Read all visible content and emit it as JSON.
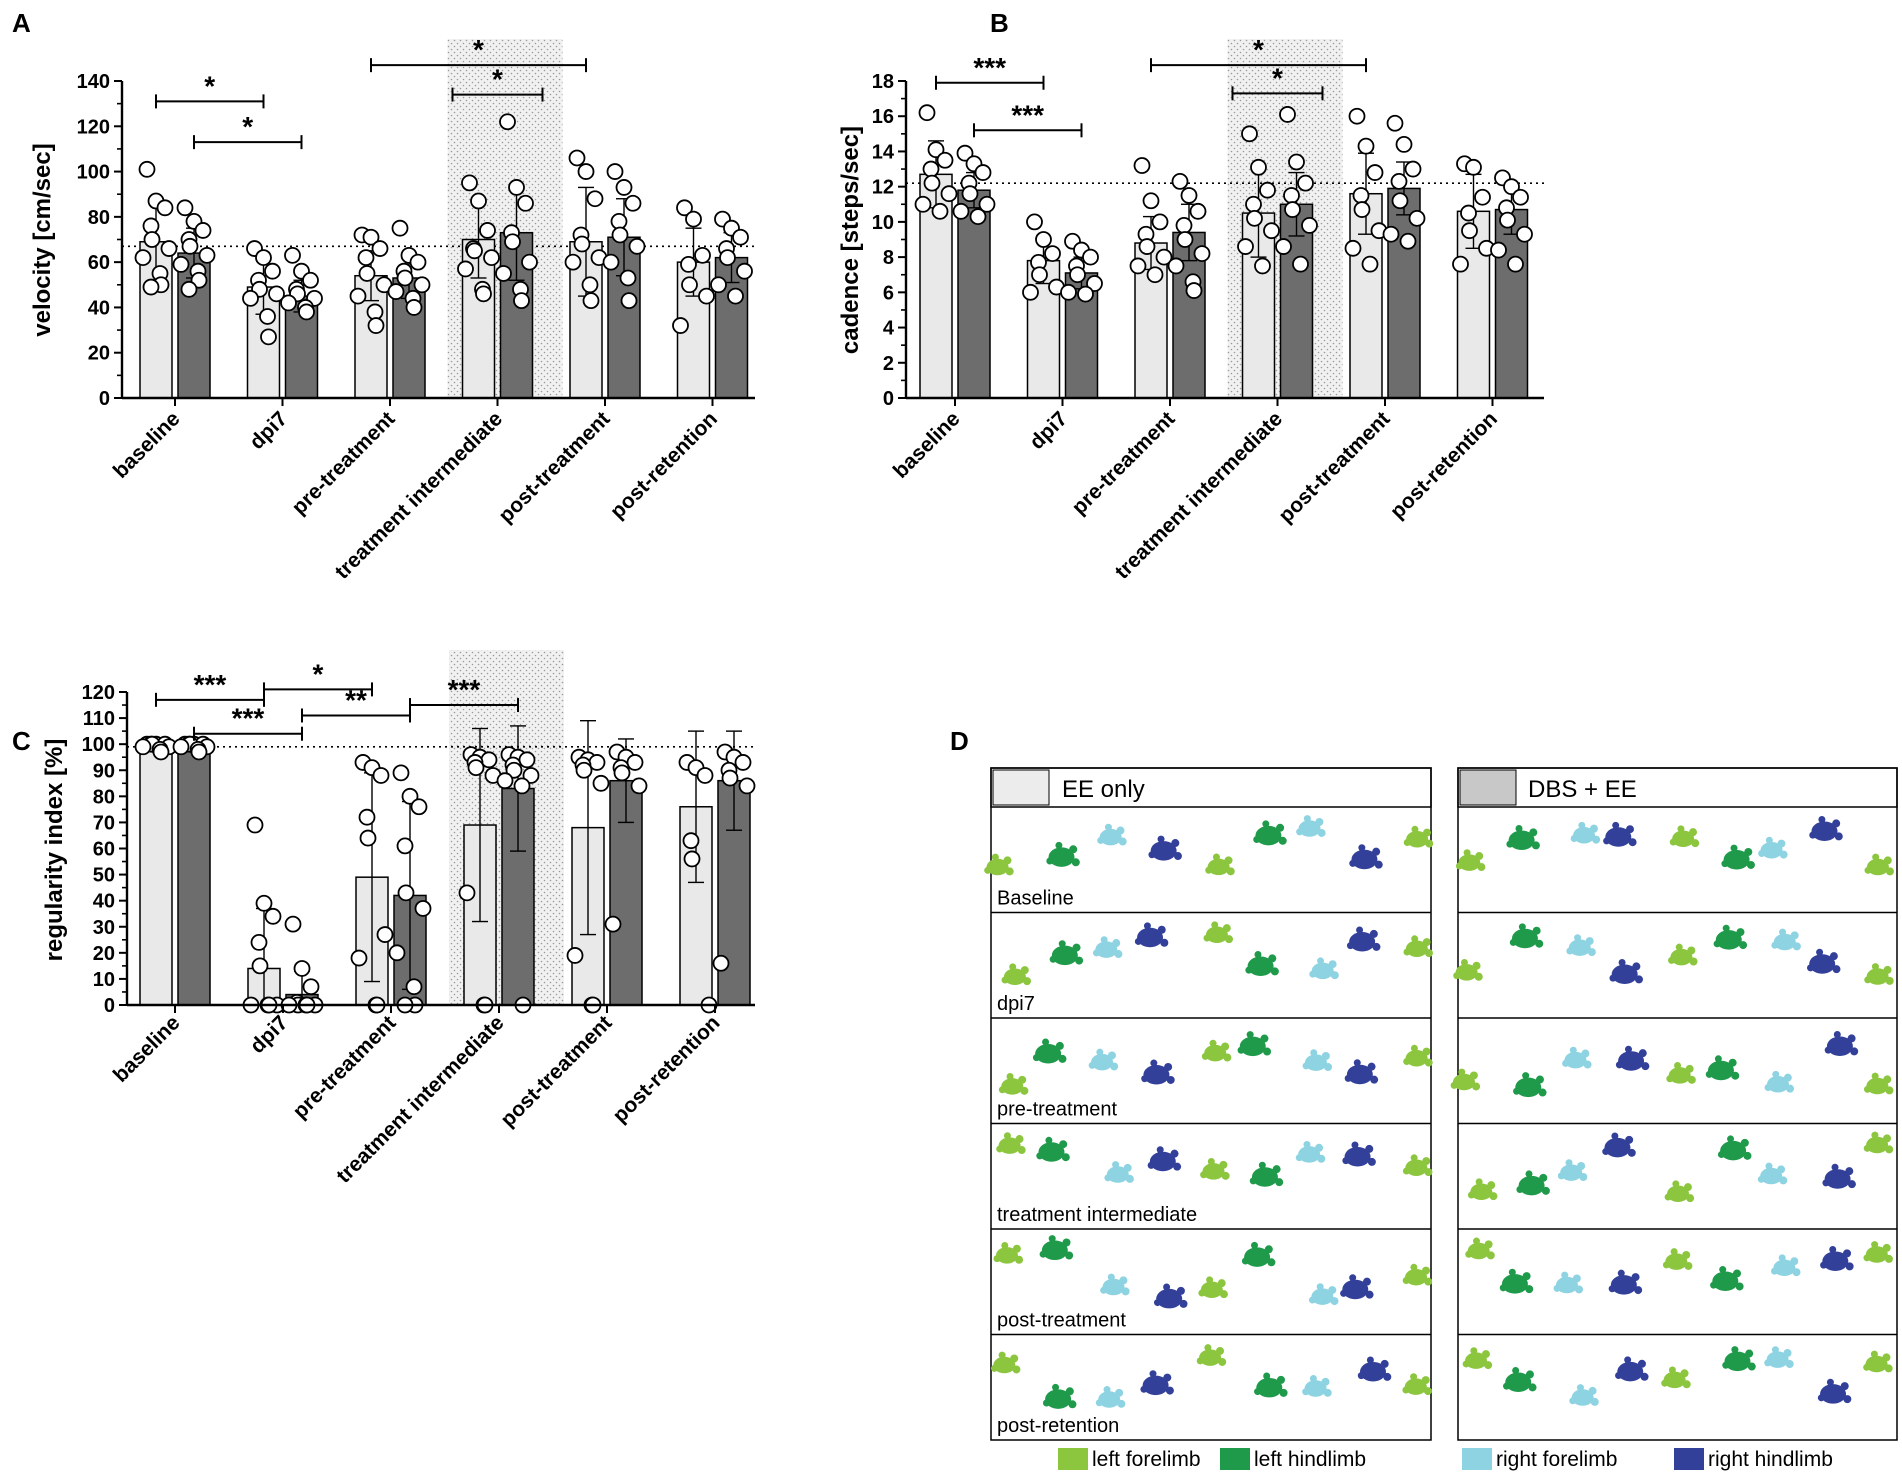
{
  "colors": {
    "ee_only_bar": "#e9e9e9",
    "dbs_ee_bar": "#6d6d6d",
    "shade": "#eeeeee",
    "left_forelimb": "#8cc63f",
    "left_hindlimb": "#1e9a4a",
    "right_forelimb": "#8ed3e2",
    "right_hindlimb": "#33409a"
  },
  "categories": [
    "baseline",
    "dpi7",
    "pre-treatment",
    "treatment intermediate",
    "post-treatment",
    "post-retention"
  ],
  "chart_data": [
    {
      "panel": "A",
      "type": "bar",
      "ylabel": "velocity [cm/sec]",
      "ylim": [
        0,
        140
      ],
      "yticks": [
        0,
        20,
        40,
        60,
        80,
        100,
        120,
        140
      ],
      "ytick_labels": [
        "0",
        "20",
        "40",
        "60",
        "80",
        "100",
        "120",
        "140"
      ],
      "reference_line": 67,
      "shaded_category": 3,
      "series": [
        {
          "name": "EE only",
          "values": [
            69,
            49,
            54,
            70,
            69,
            60
          ],
          "sd": [
            19,
            12,
            11,
            17,
            24,
            15
          ],
          "points": [
            [
              101,
              87,
              84,
              76,
              70,
              66,
              62,
              55,
              50,
              49
            ],
            [
              66,
              62,
              56,
              52,
              48,
              46,
              44,
              36,
              27
            ],
            [
              72,
              71,
              66,
              62,
              55,
              50,
              45,
              38,
              32
            ],
            [
              95,
              87,
              74,
              66,
              65,
              62,
              57,
              48,
              46
            ],
            [
              106,
              100,
              88,
              72,
              68,
              62,
              60,
              50,
              43
            ],
            [
              84,
              79,
              63,
              59,
              50,
              45,
              32
            ]
          ]
        },
        {
          "name": "DBS + EE",
          "values": [
            64,
            45,
            53,
            73,
            71,
            62
          ],
          "sd": [
            11,
            7,
            9,
            21,
            17,
            11
          ],
          "points": [
            [
              84,
              78,
              74,
              70,
              67,
              63,
              59,
              56,
              52,
              48
            ],
            [
              63,
              56,
              52,
              48,
              46,
              44,
              42,
              40,
              38
            ],
            [
              75,
              63,
              60,
              56,
              53,
              50,
              47,
              44,
              40
            ],
            [
              122,
              93,
              86,
              73,
              69,
              60,
              55,
              48,
              43
            ],
            [
              100,
              93,
              86,
              78,
              72,
              67,
              60,
              53,
              43
            ],
            [
              79,
              75,
              71,
              66,
              62,
              56,
              50,
              45
            ]
          ]
        }
      ],
      "significance": [
        {
          "from": 0,
          "from_group": 0,
          "to": 1,
          "to_group": 0,
          "label": "*",
          "y": 131
        },
        {
          "from": 0,
          "from_group": 1,
          "to": 1,
          "to_group": 1,
          "label": "*",
          "y": 113
        },
        {
          "from": 3,
          "from_group": 0,
          "to": 3,
          "to_group": 1,
          "label": "*",
          "y": 134
        },
        {
          "from": 2,
          "from_group": 0,
          "to": 4,
          "to_group": 0,
          "label": "*",
          "y": 147
        }
      ]
    },
    {
      "panel": "B",
      "type": "bar",
      "ylabel": "cadence [steps/sec]",
      "ylim": [
        0,
        18
      ],
      "yticks": [
        0,
        2,
        4,
        6,
        8,
        10,
        12,
        14,
        16,
        18
      ],
      "ytick_labels": [
        "0",
        "2",
        "4",
        "6",
        "8",
        "10",
        "12",
        "14",
        "16",
        "18"
      ],
      "reference_line": 12.2,
      "shaded_category": 3,
      "series": [
        {
          "name": "EE only",
          "values": [
            12.7,
            7.8,
            8.8,
            10.5,
            11.6,
            10.6
          ],
          "sd": [
            1.9,
            1.3,
            1.5,
            2.5,
            2.3,
            2.1
          ],
          "points": [
            [
              16.2,
              14.1,
              13.5,
              13.0,
              12.2,
              11.6,
              11.0,
              10.6
            ],
            [
              10.0,
              9.0,
              8.2,
              7.7,
              7.0,
              6.3,
              6.0
            ],
            [
              13.2,
              11.2,
              10.0,
              9.3,
              8.6,
              8.0,
              7.5,
              7.0
            ],
            [
              15.0,
              13.1,
              11.8,
              11.0,
              10.2,
              9.5,
              8.6,
              7.5
            ],
            [
              16.0,
              14.3,
              12.8,
              11.5,
              10.7,
              9.5,
              8.5,
              7.6
            ],
            [
              13.3,
              13.1,
              11.4,
              10.5,
              9.5,
              8.5,
              7.6
            ]
          ]
        },
        {
          "name": "DBS + EE",
          "values": [
            11.8,
            7.1,
            9.4,
            11.0,
            11.9,
            10.7
          ],
          "sd": [
            1.0,
            0.9,
            1.6,
            1.8,
            1.5,
            1.4
          ],
          "points": [
            [
              13.9,
              13.3,
              12.8,
              12.2,
              11.6,
              11.0,
              10.6,
              10.3
            ],
            [
              8.9,
              8.4,
              8.0,
              7.5,
              7.0,
              6.5,
              6.0,
              5.9
            ],
            [
              12.3,
              11.5,
              10.6,
              9.8,
              9.0,
              8.2,
              7.5,
              6.6,
              6.1
            ],
            [
              16.1,
              13.4,
              12.2,
              11.5,
              10.7,
              9.8,
              8.6,
              7.6
            ],
            [
              15.6,
              14.4,
              13.0,
              12.3,
              11.2,
              10.2,
              9.3,
              8.9
            ],
            [
              12.5,
              12.0,
              11.4,
              10.8,
              10.1,
              9.3,
              8.4,
              7.6
            ]
          ]
        }
      ],
      "significance": [
        {
          "from": 0,
          "from_group": 0,
          "to": 1,
          "to_group": 0,
          "label": "***",
          "y": 17.9
        },
        {
          "from": 0,
          "from_group": 1,
          "to": 1,
          "to_group": 1,
          "label": "***",
          "y": 15.2
        },
        {
          "from": 3,
          "from_group": 0,
          "to": 3,
          "to_group": 1,
          "label": "*",
          "y": 17.3
        },
        {
          "from": 2,
          "from_group": 0,
          "to": 4,
          "to_group": 0,
          "label": "*",
          "y": 18.9
        }
      ]
    },
    {
      "panel": "C",
      "type": "bar",
      "ylabel": "regularity index [%]",
      "ylim": [
        0,
        120
      ],
      "yticks": [
        0,
        10,
        20,
        30,
        40,
        50,
        60,
        70,
        80,
        90,
        100,
        110,
        120
      ],
      "ytick_labels": [
        "0",
        "10",
        "20",
        "30",
        "40",
        "50",
        "60",
        "70",
        "80",
        "90",
        "100",
        "110",
        "120"
      ],
      "reference_line": 99,
      "shaded_category": 3,
      "series": [
        {
          "name": "EE only",
          "values": [
            100,
            14,
            49,
            69,
            68,
            76
          ],
          "sd": [
            0,
            23,
            40,
            37,
            41,
            29
          ],
          "points": [
            [
              100,
              100,
              100,
              100,
              100,
              99,
              99,
              98,
              97
            ],
            [
              69,
              39,
              34,
              24,
              15,
              0,
              0,
              0,
              0
            ],
            [
              93,
              91,
              88,
              72,
              64,
              27,
              18,
              0,
              0
            ],
            [
              96,
              95,
              94,
              93,
              91,
              88,
              43,
              0,
              0
            ],
            [
              95,
              94,
              93,
              92,
              90,
              85,
              19,
              0,
              0
            ],
            [
              93,
              91,
              88,
              63,
              56,
              0
            ]
          ]
        },
        {
          "name": "DBS + EE",
          "values": [
            100,
            4,
            42,
            83,
            86,
            86
          ],
          "sd": [
            0,
            9,
            36,
            24,
            16,
            19
          ],
          "points": [
            [
              100,
              100,
              100,
              100,
              100,
              99,
              99,
              98,
              97
            ],
            [
              31,
              14,
              7,
              1,
              0,
              0,
              0,
              0,
              0
            ],
            [
              89,
              80,
              76,
              61,
              43,
              37,
              20,
              7,
              0,
              0
            ],
            [
              96,
              95,
              94,
              92,
              90,
              88,
              86,
              84,
              0
            ],
            [
              97,
              95,
              93,
              91,
              89,
              84,
              31
            ],
            [
              97,
              95,
              93,
              90,
              87,
              84,
              16
            ]
          ]
        }
      ],
      "significance": [
        {
          "from": 0,
          "from_group": 0,
          "to": 1,
          "to_group": 0,
          "label": "***",
          "y": 117
        },
        {
          "from": 0,
          "from_group": 1,
          "to": 1,
          "to_group": 1,
          "label": "***",
          "y": 104
        },
        {
          "from": 1,
          "from_group": 0,
          "to": 2,
          "to_group": 0,
          "label": "*",
          "y": 121
        },
        {
          "from": 1,
          "from_group": 1,
          "to": 2,
          "to_group": 1,
          "label": "**",
          "y": 111
        },
        {
          "from": 2,
          "from_group": 1,
          "to": 3,
          "to_group": 1,
          "label": "***",
          "y": 115
        }
      ]
    }
  ],
  "panels": {
    "a_label": "A",
    "b_label": "B",
    "c_label": "C",
    "d_label": "D"
  },
  "panel_d": {
    "group_left": "EE only",
    "group_right": "DBS + EE",
    "rows": [
      "Baseline",
      "dpi7",
      "pre-treatment",
      "treatment intermediate",
      "post-treatment",
      "post-retention"
    ],
    "legend": [
      {
        "label": "left forelimb",
        "color": "#8cc63f"
      },
      {
        "label": "left hindlimb",
        "color": "#1e9a4a"
      },
      {
        "label": "right forelimb",
        "color": "#8ed3e2"
      },
      {
        "label": "right hindlimb",
        "color": "#33409a"
      }
    ]
  }
}
